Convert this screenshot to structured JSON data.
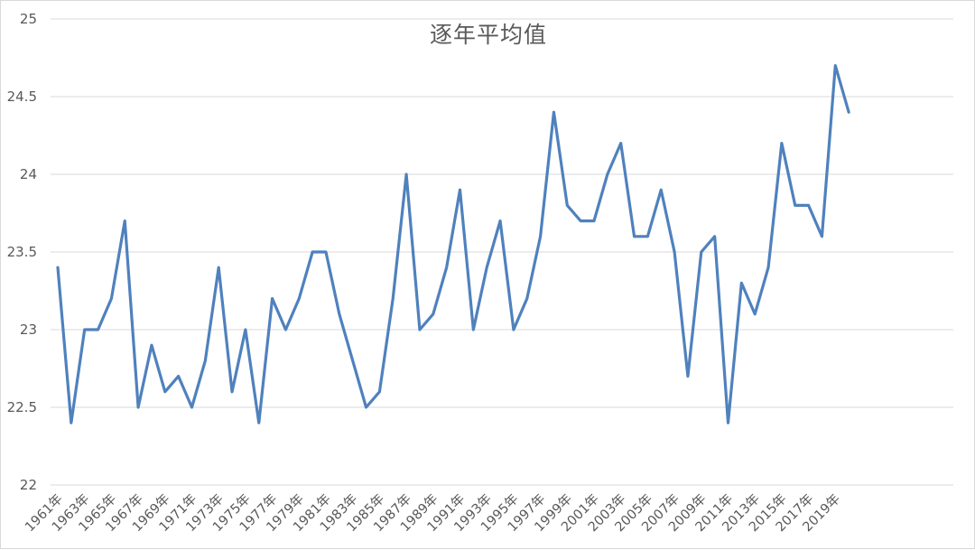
{
  "chart_data": {
    "type": "line",
    "title": "逐年平均值",
    "xlabel": "",
    "ylabel": "",
    "ylim": [
      22,
      25
    ],
    "yticks": [
      22,
      22.5,
      23,
      23.5,
      24,
      24.5,
      25
    ],
    "ytick_labels": [
      "22",
      "22.5",
      "23",
      "23.5",
      "24",
      "24.5",
      "25"
    ],
    "grid": true,
    "legend": "none",
    "x": [
      "1961年",
      "1962年",
      "1963年",
      "1964年",
      "1965年",
      "1966年",
      "1967年",
      "1968年",
      "1969年",
      "1970年",
      "1971年",
      "1972年",
      "1973年",
      "1974年",
      "1975年",
      "1976年",
      "1977年",
      "1978年",
      "1979年",
      "1980年",
      "1981年",
      "1982年",
      "1983年",
      "1984年",
      "1985年",
      "1986年",
      "1987年",
      "1988年",
      "1989年",
      "1990年",
      "1991年",
      "1992年",
      "1993年",
      "1994年",
      "1995年",
      "1996年",
      "1997年",
      "1998年",
      "1999年",
      "2000年",
      "2001年",
      "2002年",
      "2003年",
      "2004年",
      "2005年",
      "2006年",
      "2007年",
      "2008年",
      "2009年",
      "2010年",
      "2011年",
      "2012年",
      "2013年",
      "2014年",
      "2015年",
      "2016年",
      "2017年",
      "2018年",
      "2019年",
      "2020年"
    ],
    "x_tick_labels": [
      "1961年",
      "1963年",
      "1965年",
      "1967年",
      "1969年",
      "1971年",
      "1973年",
      "1975年",
      "1977年",
      "1979年",
      "1981年",
      "1983年",
      "1985年",
      "1987年",
      "1989年",
      "1991年",
      "1993年",
      "1995年",
      "1997年",
      "1999年",
      "2001年",
      "2003年",
      "2005年",
      "2007年",
      "2009年",
      "2011年",
      "2013年",
      "2015年",
      "2017年",
      "2019年"
    ],
    "series": [
      {
        "color": "#4f81bd",
        "values": [
          23.4,
          22.4,
          23.0,
          23.0,
          23.2,
          23.7,
          22.5,
          22.9,
          22.6,
          22.7,
          22.5,
          22.8,
          23.4,
          22.6,
          23.0,
          22.4,
          23.2,
          23.0,
          23.2,
          23.5,
          23.5,
          23.1,
          22.8,
          22.5,
          22.6,
          23.2,
          24.0,
          23.0,
          23.1,
          23.4,
          23.9,
          23.0,
          23.4,
          23.7,
          23.0,
          23.2,
          23.6,
          24.4,
          23.8,
          23.7,
          23.7,
          24.0,
          24.2,
          23.6,
          23.6,
          23.9,
          23.5,
          22.7,
          23.5,
          23.6,
          22.4,
          23.3,
          23.1,
          23.4,
          24.2,
          23.8,
          23.8,
          23.6,
          24.7,
          24.4
        ]
      }
    ]
  }
}
